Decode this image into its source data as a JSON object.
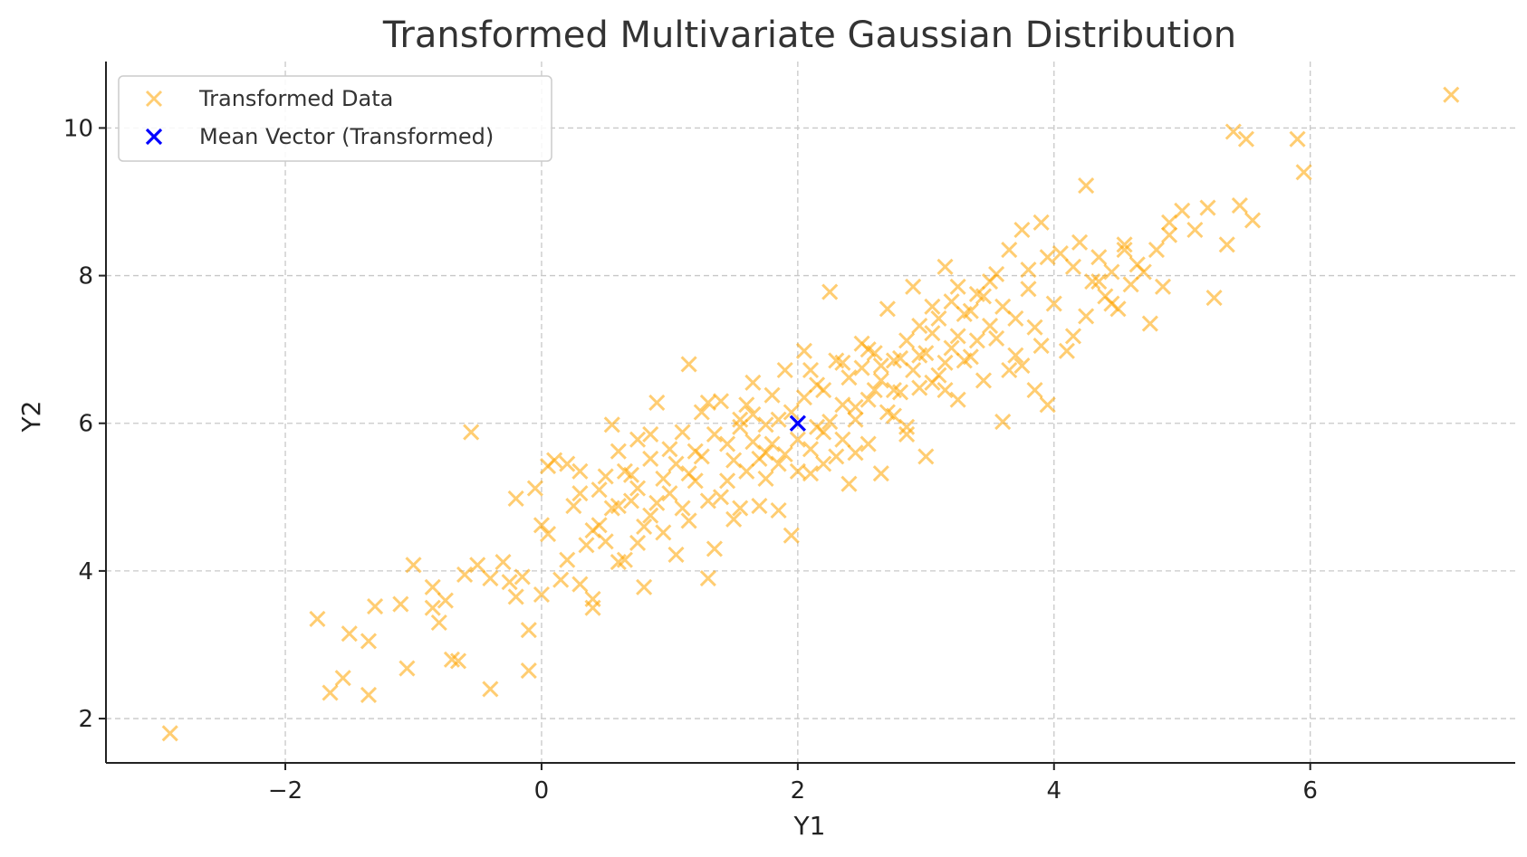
{
  "chart_data": {
    "type": "scatter",
    "title": "Transformed Multivariate Gaussian Distribution",
    "xlabel": "Y1",
    "ylabel": "Y2",
    "xlim": [
      -3.4,
      7.6
    ],
    "ylim": [
      1.4,
      10.9
    ],
    "xticks": [
      -2,
      0,
      2,
      4,
      6
    ],
    "yticks": [
      2,
      4,
      6,
      8,
      10
    ],
    "xtick_labels": [
      "−2",
      "0",
      "2",
      "4",
      "6"
    ],
    "ytick_labels": [
      "2",
      "4",
      "6",
      "8",
      "10"
    ],
    "grid": true,
    "legend_position": "top-left",
    "series": [
      {
        "name": "Transformed Data",
        "marker": "x",
        "color": "#FFA500",
        "opacity": 0.55,
        "points": [
          [
            -2.9,
            1.8
          ],
          [
            -1.75,
            3.35
          ],
          [
            -1.65,
            2.35
          ],
          [
            -1.55,
            2.55
          ],
          [
            -1.5,
            3.15
          ],
          [
            -1.35,
            3.05
          ],
          [
            -1.3,
            3.52
          ],
          [
            -1.35,
            2.32
          ],
          [
            -1.1,
            3.55
          ],
          [
            -1.05,
            2.68
          ],
          [
            -1.0,
            4.08
          ],
          [
            -0.85,
            3.78
          ],
          [
            -0.85,
            3.5
          ],
          [
            -0.8,
            3.3
          ],
          [
            -0.75,
            3.6
          ],
          [
            -0.7,
            2.8
          ],
          [
            -0.65,
            2.78
          ],
          [
            -0.6,
            3.95
          ],
          [
            -0.55,
            5.88
          ],
          [
            -0.5,
            4.08
          ],
          [
            -0.4,
            3.9
          ],
          [
            -0.4,
            2.4
          ],
          [
            -0.3,
            4.12
          ],
          [
            -0.25,
            3.85
          ],
          [
            -0.2,
            4.98
          ],
          [
            -0.2,
            3.65
          ],
          [
            -0.15,
            3.92
          ],
          [
            -0.1,
            3.2
          ],
          [
            -0.1,
            2.65
          ],
          [
            -0.05,
            5.12
          ],
          [
            0.0,
            3.68
          ],
          [
            0.0,
            4.62
          ],
          [
            0.05,
            4.5
          ],
          [
            0.05,
            5.42
          ],
          [
            0.1,
            5.5
          ],
          [
            0.15,
            3.88
          ],
          [
            0.2,
            5.45
          ],
          [
            0.2,
            4.15
          ],
          [
            0.25,
            4.88
          ],
          [
            0.3,
            5.05
          ],
          [
            0.3,
            3.82
          ],
          [
            0.35,
            4.35
          ],
          [
            0.4,
            3.5
          ],
          [
            0.4,
            3.62
          ],
          [
            0.45,
            4.62
          ],
          [
            0.5,
            5.28
          ],
          [
            0.55,
            5.98
          ],
          [
            0.6,
            4.12
          ],
          [
            0.6,
            4.88
          ],
          [
            0.65,
            5.35
          ],
          [
            0.7,
            4.95
          ],
          [
            0.75,
            5.78
          ],
          [
            0.75,
            4.38
          ],
          [
            0.8,
            3.78
          ],
          [
            0.85,
            4.75
          ],
          [
            0.85,
            5.52
          ],
          [
            0.9,
            6.28
          ],
          [
            0.95,
            4.52
          ],
          [
            1.0,
            5.05
          ],
          [
            1.05,
            4.22
          ],
          [
            1.1,
            5.88
          ],
          [
            1.15,
            4.68
          ],
          [
            1.15,
            6.8
          ],
          [
            1.2,
            5.22
          ],
          [
            1.25,
            5.55
          ],
          [
            1.3,
            3.9
          ],
          [
            1.3,
            6.28
          ],
          [
            1.35,
            4.3
          ],
          [
            1.4,
            5.0
          ],
          [
            1.45,
            5.72
          ],
          [
            1.5,
            4.7
          ],
          [
            1.55,
            6.05
          ],
          [
            1.6,
            5.35
          ],
          [
            1.65,
            6.12
          ],
          [
            1.7,
            4.88
          ],
          [
            1.75,
            5.6
          ],
          [
            1.8,
            6.38
          ],
          [
            1.85,
            5.45
          ],
          [
            1.9,
            6.72
          ],
          [
            1.95,
            4.48
          ],
          [
            2.0,
            5.78
          ],
          [
            2.05,
            6.98
          ],
          [
            2.1,
            5.32
          ],
          [
            2.15,
            6.52
          ],
          [
            2.2,
            5.88
          ],
          [
            2.25,
            7.78
          ],
          [
            2.3,
            5.55
          ],
          [
            2.35,
            6.82
          ],
          [
            2.4,
            5.18
          ],
          [
            2.45,
            6.22
          ],
          [
            2.5,
            7.08
          ],
          [
            2.55,
            5.72
          ],
          [
            2.6,
            6.45
          ],
          [
            2.65,
            5.32
          ],
          [
            2.7,
            7.55
          ],
          [
            2.75,
            6.1
          ],
          [
            2.8,
            6.88
          ],
          [
            2.85,
            5.95
          ],
          [
            2.9,
            7.85
          ],
          [
            2.95,
            6.48
          ],
          [
            3.0,
            5.55
          ],
          [
            3.05,
            7.22
          ],
          [
            3.1,
            6.65
          ],
          [
            3.15,
            8.12
          ],
          [
            3.2,
            7.02
          ],
          [
            3.25,
            6.32
          ],
          [
            3.3,
            7.48
          ],
          [
            3.35,
            6.9
          ],
          [
            3.4,
            7.75
          ],
          [
            3.45,
            6.58
          ],
          [
            3.5,
            7.92
          ],
          [
            3.55,
            7.15
          ],
          [
            3.6,
            6.02
          ],
          [
            3.65,
            8.35
          ],
          [
            3.7,
            7.42
          ],
          [
            3.75,
            6.78
          ],
          [
            3.8,
            8.08
          ],
          [
            3.85,
            7.3
          ],
          [
            3.9,
            8.72
          ],
          [
            3.95,
            6.25
          ],
          [
            4.0,
            7.62
          ],
          [
            4.05,
            8.3
          ],
          [
            4.1,
            6.98
          ],
          [
            4.15,
            7.18
          ],
          [
            4.2,
            8.45
          ],
          [
            4.25,
            9.22
          ],
          [
            4.3,
            7.92
          ],
          [
            4.35,
            8.25
          ],
          [
            4.4,
            7.72
          ],
          [
            4.45,
            8.05
          ],
          [
            4.5,
            7.55
          ],
          [
            4.55,
            8.35
          ],
          [
            4.6,
            7.88
          ],
          [
            4.65,
            8.15
          ],
          [
            4.75,
            7.35
          ],
          [
            4.8,
            8.35
          ],
          [
            4.85,
            7.85
          ],
          [
            4.9,
            8.72
          ],
          [
            5.0,
            8.88
          ],
          [
            5.1,
            8.62
          ],
          [
            5.2,
            8.92
          ],
          [
            5.25,
            7.7
          ],
          [
            5.35,
            8.42
          ],
          [
            5.4,
            9.95
          ],
          [
            5.45,
            8.95
          ],
          [
            5.5,
            9.85
          ],
          [
            5.55,
            8.75
          ],
          [
            5.9,
            9.85
          ],
          [
            5.95,
            9.4
          ],
          [
            7.1,
            10.45
          ],
          [
            0.55,
            4.85
          ],
          [
            0.65,
            4.15
          ],
          [
            0.7,
            5.3
          ],
          [
            0.8,
            4.6
          ],
          [
            0.95,
            5.25
          ],
          [
            1.05,
            5.45
          ],
          [
            1.1,
            4.85
          ],
          [
            1.2,
            5.62
          ],
          [
            1.25,
            6.15
          ],
          [
            1.35,
            5.85
          ],
          [
            1.4,
            6.3
          ],
          [
            1.5,
            5.5
          ],
          [
            1.55,
            5.95
          ],
          [
            1.6,
            6.25
          ],
          [
            1.65,
            5.75
          ],
          [
            1.7,
            5.52
          ],
          [
            1.75,
            5.25
          ],
          [
            1.8,
            5.72
          ],
          [
            1.85,
            6.05
          ],
          [
            1.9,
            5.58
          ],
          [
            1.95,
            6.15
          ],
          [
            2.05,
            6.35
          ],
          [
            2.1,
            5.65
          ],
          [
            2.15,
            5.95
          ],
          [
            2.2,
            6.45
          ],
          [
            2.25,
            6.02
          ],
          [
            2.3,
            6.85
          ],
          [
            2.35,
            5.78
          ],
          [
            2.4,
            6.62
          ],
          [
            2.45,
            6.05
          ],
          [
            2.5,
            6.75
          ],
          [
            2.55,
            6.32
          ],
          [
            2.6,
            6.95
          ],
          [
            2.65,
            6.58
          ],
          [
            2.7,
            6.15
          ],
          [
            2.75,
            6.85
          ],
          [
            2.8,
            6.42
          ],
          [
            2.85,
            7.12
          ],
          [
            2.9,
            6.72
          ],
          [
            2.95,
            7.32
          ],
          [
            3.0,
            6.95
          ],
          [
            3.05,
            6.55
          ],
          [
            3.1,
            7.42
          ],
          [
            3.15,
            6.82
          ],
          [
            3.2,
            7.65
          ],
          [
            3.25,
            7.18
          ],
          [
            3.3,
            6.85
          ],
          [
            3.35,
            7.52
          ],
          [
            3.4,
            7.12
          ],
          [
            3.5,
            7.32
          ],
          [
            3.6,
            7.58
          ],
          [
            3.7,
            6.92
          ],
          [
            3.8,
            7.82
          ],
          [
            3.9,
            7.05
          ],
          [
            0.3,
            5.35
          ],
          [
            0.4,
            4.55
          ],
          [
            0.45,
            5.1
          ],
          [
            0.5,
            4.4
          ],
          [
            0.6,
            5.62
          ],
          [
            0.75,
            5.12
          ],
          [
            0.85,
            5.85
          ],
          [
            0.9,
            4.92
          ],
          [
            1.0,
            5.65
          ],
          [
            1.15,
            5.32
          ],
          [
            1.3,
            4.95
          ],
          [
            1.45,
            5.22
          ],
          [
            1.55,
            4.85
          ],
          [
            1.65,
            6.55
          ],
          [
            1.75,
            5.98
          ],
          [
            1.85,
            4.82
          ],
          [
            2.0,
            5.35
          ],
          [
            2.1,
            6.72
          ],
          [
            2.2,
            5.45
          ],
          [
            2.35,
            6.25
          ],
          [
            2.45,
            5.6
          ],
          [
            2.55,
            7.0
          ],
          [
            2.65,
            6.78
          ],
          [
            2.75,
            6.45
          ],
          [
            2.85,
            5.85
          ],
          [
            2.95,
            6.92
          ],
          [
            3.05,
            7.58
          ],
          [
            3.15,
            6.45
          ],
          [
            3.25,
            7.85
          ],
          [
            3.45,
            7.72
          ],
          [
            3.55,
            8.02
          ],
          [
            3.65,
            6.72
          ],
          [
            3.75,
            8.62
          ],
          [
            3.85,
            6.45
          ],
          [
            3.95,
            8.25
          ],
          [
            4.15,
            8.12
          ],
          [
            4.25,
            7.45
          ],
          [
            4.35,
            7.92
          ],
          [
            4.45,
            7.62
          ],
          [
            4.55,
            8.42
          ],
          [
            4.7,
            8.05
          ],
          [
            4.9,
            8.55
          ]
        ]
      },
      {
        "name": "Mean Vector (Transformed)",
        "marker": "x",
        "color": "#0000FF",
        "opacity": 1,
        "points": [
          [
            2.0,
            6.0
          ]
        ]
      }
    ]
  }
}
